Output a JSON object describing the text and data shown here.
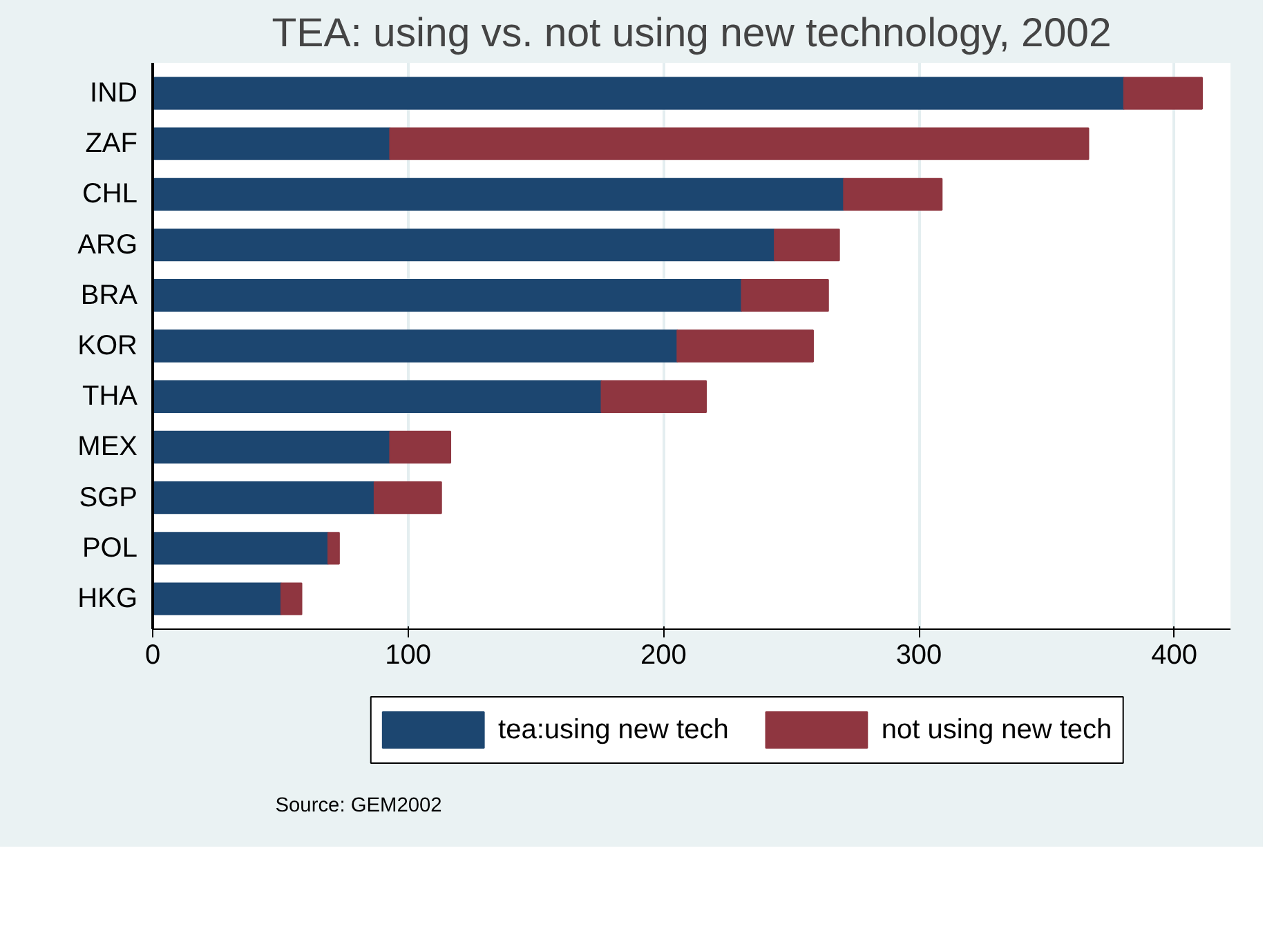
{
  "chart_data": {
    "type": "bar",
    "orientation": "horizontal",
    "stacked": true,
    "title": "TEA: using vs. not using new technology, 2002",
    "categories": [
      "IND",
      "ZAF",
      "CHL",
      "ARG",
      "BRA",
      "KOR",
      "THA",
      "MEX",
      "SGP",
      "POL",
      "HKG"
    ],
    "series": [
      {
        "name": "tea:using new tech",
        "color": "#1c4670",
        "values": [
          380.3,
          92.9,
          270.6,
          243.5,
          230.6,
          205.4,
          175.7,
          92.9,
          86.8,
          68.7,
          50.3
        ]
      },
      {
        "name": "not using new tech",
        "color": "#8f3640",
        "values": [
          30.6,
          273.5,
          38.4,
          25.3,
          33.9,
          53.2,
          41.0,
          23.7,
          26.2,
          4.3,
          8.0
        ]
      }
    ],
    "xlim": [
      0,
      422
    ],
    "xticks": [
      0,
      100,
      200,
      300,
      400
    ],
    "grid": "x",
    "legend": "bottom",
    "annotations": [
      "Source: GEM2002"
    ]
  }
}
